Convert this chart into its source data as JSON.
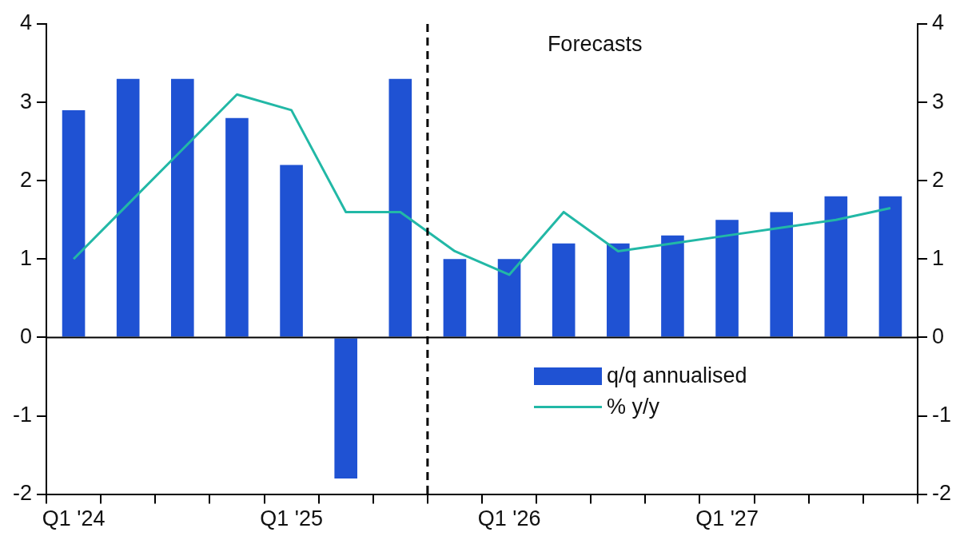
{
  "chart_data": {
    "type": "bar",
    "categories": [
      "Q1 '24",
      null,
      null,
      null,
      "Q1 '25",
      null,
      null,
      null,
      "Q1 '26",
      null,
      null,
      null,
      "Q1 '27",
      null,
      null,
      null
    ],
    "series": [
      {
        "name": "q/q annualised",
        "color": "#1f52d3",
        "values": [
          2.9,
          3.3,
          3.3,
          2.8,
          2.2,
          -1.8,
          3.3,
          1.0,
          1.0,
          1.2,
          1.2,
          1.3,
          1.5,
          1.6,
          1.8,
          1.8
        ]
      },
      {
        "name": "% y/y",
        "type": "line",
        "color": "#22b8a6",
        "values": [
          1.0,
          1.7,
          2.4,
          3.1,
          2.9,
          1.6,
          1.6,
          1.1,
          0.8,
          1.6,
          1.1,
          1.2,
          1.3,
          1.4,
          1.5,
          1.65
        ]
      }
    ],
    "ylim": [
      -2,
      4
    ],
    "yticks": [
      -2,
      -1,
      0,
      1,
      2,
      3,
      4
    ],
    "y2lim": [
      -2,
      4
    ],
    "y2ticks": [
      -2,
      -1,
      0,
      1,
      2,
      3,
      4
    ],
    "annotations": [
      "Forecasts"
    ],
    "grid": false,
    "legend": "bottom right",
    "marker": "none"
  }
}
